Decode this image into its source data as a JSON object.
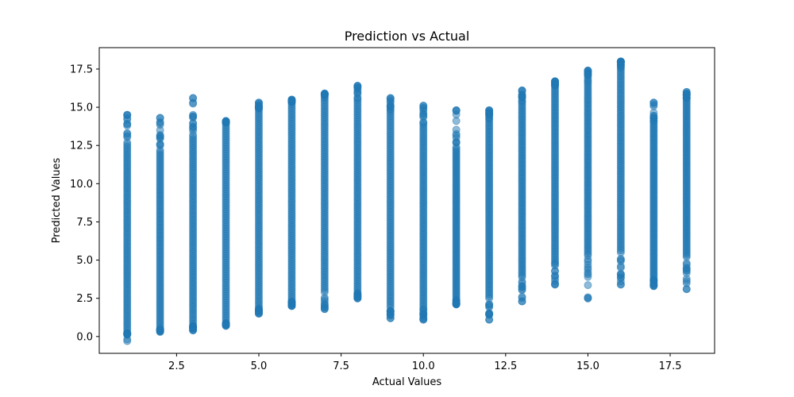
{
  "chart_data": {
    "type": "scatter",
    "title": "Prediction vs Actual",
    "xlabel": "Actual Values",
    "ylabel": "Predicted Values",
    "xlim": [
      0.15,
      18.85
    ],
    "ylim": [
      -1.1,
      18.9
    ],
    "xticks": [
      2.5,
      5.0,
      7.5,
      10.0,
      12.5,
      15.0,
      17.5
    ],
    "xtick_labels": [
      "2.5",
      "5.0",
      "7.5",
      "10.0",
      "12.5",
      "15.0",
      "17.5"
    ],
    "yticks": [
      0.0,
      2.5,
      5.0,
      7.5,
      10.0,
      12.5,
      15.0,
      17.5
    ],
    "ytick_labels": [
      "0.0",
      "2.5",
      "5.0",
      "7.5",
      "10.0",
      "12.5",
      "15.0",
      "17.5"
    ],
    "grid": false,
    "marker_color": "#1f77b4",
    "marker_alpha": 0.5,
    "series": [
      {
        "x": [
          1,
          2,
          3,
          4,
          5,
          6,
          7,
          8,
          9,
          10,
          11,
          12,
          13,
          14,
          15,
          16,
          17,
          18
        ],
        "y_min": [
          -0.3,
          0.3,
          0.4,
          0.7,
          1.5,
          2.0,
          1.8,
          2.5,
          1.2,
          1.1,
          2.1,
          1.1,
          2.3,
          3.4,
          2.5,
          3.4,
          3.3,
          3.1
        ],
        "y_dense_low": [
          0.4,
          0.5,
          0.7,
          0.9,
          1.9,
          2.3,
          2.9,
          2.9,
          1.9,
          1.8,
          2.4,
          2.5,
          4.0,
          4.8,
          5.3,
          5.5,
          3.8,
          5.2
        ],
        "y_dense_high": [
          12.7,
          12.2,
          13.2,
          14.0,
          14.8,
          15.2,
          15.6,
          15.6,
          14.7,
          14.0,
          12.4,
          14.2,
          15.4,
          16.4,
          16.7,
          17.7,
          14.0,
          15.6
        ],
        "y_max": [
          14.5,
          14.3,
          15.6,
          14.1,
          15.3,
          15.5,
          15.9,
          16.4,
          15.6,
          15.1,
          14.8,
          14.8,
          16.1,
          16.7,
          17.4,
          18.0,
          15.3,
          16.0
        ],
        "y_outliers": [
          [
            14.5,
            13.9,
            13.8
          ],
          [
            14.3,
            13.5,
            13.1,
            12.6,
            12.5
          ],
          [
            15.6,
            14.5,
            14.4,
            13.7,
            13.6,
            0.6,
            0.4
          ],
          [
            14.1,
            14.0,
            0.8,
            0.7
          ],
          [
            15.3,
            15.0,
            1.6,
            1.5
          ],
          [
            15.5,
            2.2,
            2.0
          ],
          [
            15.9,
            1.8
          ],
          [
            16.4,
            2.6,
            2.5
          ],
          [
            15.6,
            15.4,
            1.5,
            1.2
          ],
          [
            15.1,
            1.5,
            1.1
          ],
          [
            14.8,
            13.0,
            12.7,
            2.2,
            2.1
          ],
          [
            14.8,
            14.5,
            2.0,
            1.1
          ],
          [
            16.1,
            15.8,
            3.2,
            2.6,
            2.3
          ],
          [
            16.7,
            16.5,
            4.3,
            3.4
          ],
          [
            17.4,
            17.1,
            16.9,
            4.9,
            3.9,
            2.5
          ],
          [
            18.0,
            17.8,
            17.6,
            4.6,
            4.1,
            3.6,
            3.4
          ],
          [
            15.3,
            14.3,
            14.1,
            3.5,
            3.3
          ],
          [
            16.0,
            15.8,
            4.7,
            4.5,
            3.1
          ]
        ]
      }
    ]
  }
}
